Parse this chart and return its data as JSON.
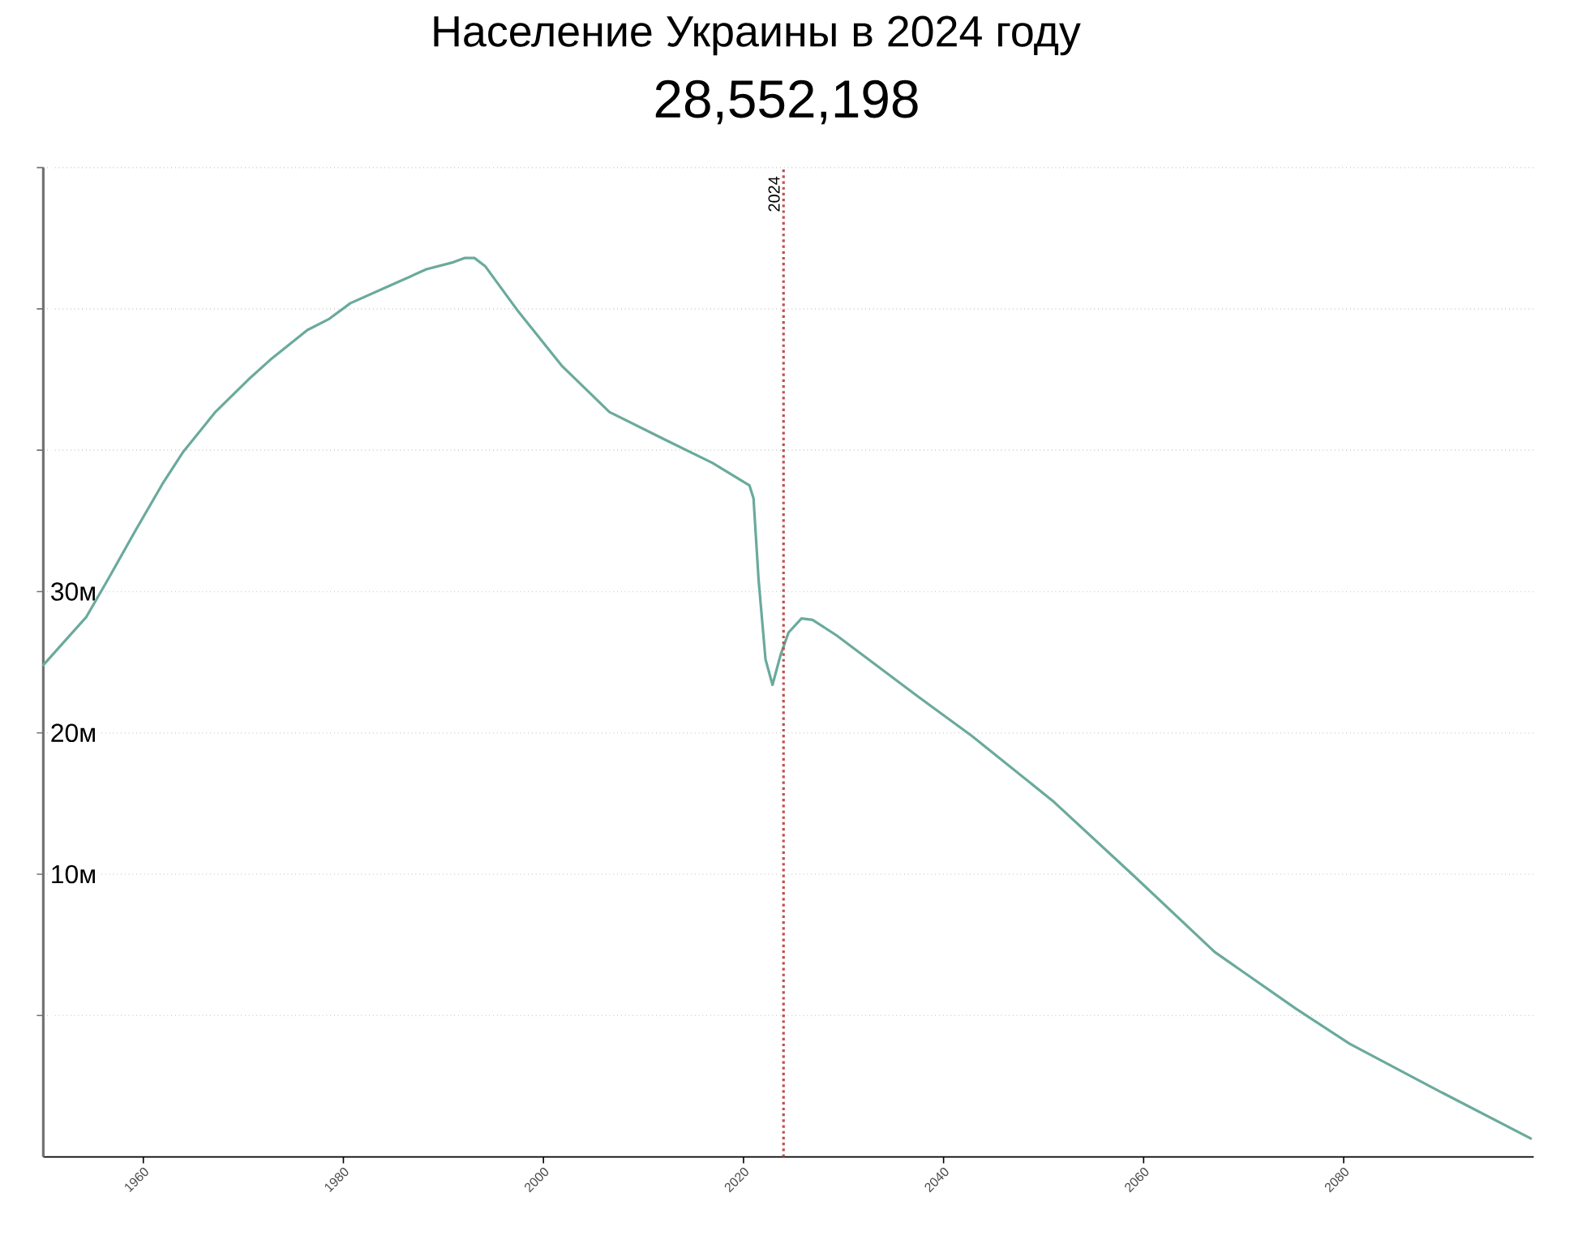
{
  "chart_data": {
    "type": "line",
    "title": "Население Украины в 2024 году",
    "subtitle": "28,552,198",
    "x": [
      1950,
      1954.3,
      1956.5,
      1959.2,
      1961.9,
      1964.0,
      1967.2,
      1970.5,
      1972.7,
      1976.4,
      1978.6,
      1980.7,
      1984.5,
      1988.3,
      1991.0,
      1992.1,
      1993.1,
      1994.2,
      1997.5,
      2001.8,
      2006.6,
      2012.0,
      2016.9,
      2020.6,
      2021.0,
      2021.5,
      2022.2,
      2022.9,
      2023.7,
      2024.5,
      2025.8,
      2026.9,
      2029.3,
      2037.4,
      2042.8,
      2050.9,
      2059.0,
      2067.1,
      2075.2,
      2080.6,
      2088.6,
      2098.7
    ],
    "series": [
      {
        "color": "#6aaa9c",
        "values": [
          24.8,
          28.2,
          30.9,
          34.3,
          37.6,
          39.9,
          42.7,
          45.0,
          46.4,
          48.5,
          49.3,
          50.4,
          51.6,
          52.8,
          53.3,
          53.6,
          53.6,
          53.0,
          49.8,
          46.0,
          42.7,
          40.8,
          39.1,
          37.5,
          36.6,
          30.9,
          25.2,
          23.4,
          25.5,
          27.1,
          28.1,
          28.0,
          26.9,
          22.6,
          19.8,
          15.2,
          9.9,
          4.5,
          0.5,
          -2.0,
          -5.0,
          -8.7
        ]
      }
    ],
    "xlim": [
      1950,
      2099
    ],
    "ylim": [
      -10,
      60
    ],
    "xticks": [
      1960,
      1980,
      2000,
      2020,
      2040,
      2060,
      2080
    ],
    "yticks": [
      {
        "value": 0,
        "label": null
      },
      {
        "value": 10,
        "label": "10м"
      },
      {
        "value": 20,
        "label": "20м"
      },
      {
        "value": 30,
        "label": "30м"
      },
      {
        "value": 40,
        "label": null
      },
      {
        "value": 50,
        "label": null
      },
      {
        "value": 60,
        "label": null
      }
    ],
    "grid": "y",
    "ref_lines": [
      {
        "axis": "x",
        "value": 2024,
        "label": "2024",
        "color": "#c0504d",
        "line_style": "dotted"
      }
    ]
  }
}
